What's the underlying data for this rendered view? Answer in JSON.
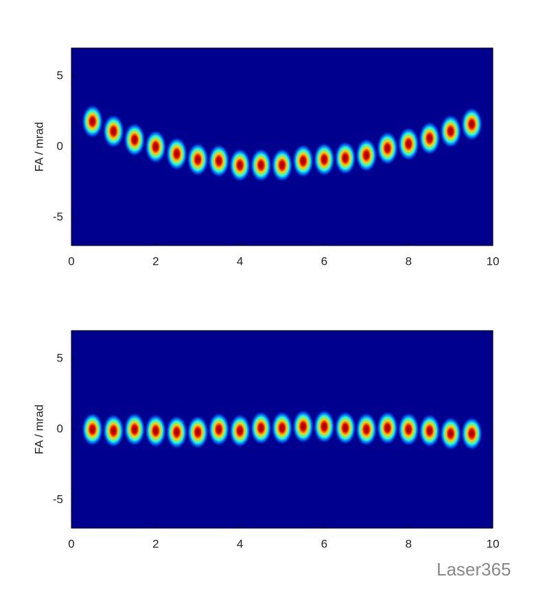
{
  "chart_data": [
    {
      "type": "scatter",
      "ylabel": "FA / mrad",
      "background": "#00008f",
      "x": [
        0.5,
        1,
        1.5,
        2,
        2.5,
        3,
        3.5,
        4,
        4.5,
        5,
        5.5,
        6,
        6.5,
        7,
        7.5,
        8,
        8.5,
        9,
        9.5
      ],
      "values": [
        1.8,
        1.1,
        0.5,
        0,
        -0.5,
        -0.9,
        -1.0,
        -1.3,
        -1.3,
        -1.3,
        -1.0,
        -0.9,
        -0.8,
        -0.6,
        -0.1,
        0.2,
        0.6,
        1.1,
        1.6
      ],
      "xlim": [
        0,
        10
      ],
      "xticks": [
        0,
        2,
        4,
        6,
        8,
        10
      ],
      "ylim": [
        -7,
        7
      ],
      "yticks": [
        -5,
        0,
        5
      ]
    },
    {
      "type": "scatter",
      "ylabel": "FA / mrad",
      "background": "#00008f",
      "x": [
        0.5,
        1,
        1.5,
        2,
        2.5,
        3,
        3.5,
        4,
        4.5,
        5,
        5.5,
        6,
        6.5,
        7,
        7.5,
        8,
        8.5,
        9,
        9.5
      ],
      "values": [
        0,
        -0.1,
        0,
        -0.1,
        -0.2,
        -0.2,
        0,
        -0.1,
        0.1,
        0.1,
        0.2,
        0.2,
        0.1,
        0,
        0.1,
        0,
        -0.1,
        -0.3,
        -0.3
      ],
      "xlim": [
        0,
        10
      ],
      "xticks": [
        0,
        2,
        4,
        6,
        8,
        10
      ],
      "ylim": [
        -7,
        7
      ],
      "yticks": [
        -5,
        0,
        5
      ]
    }
  ],
  "watermark": "Laser365"
}
